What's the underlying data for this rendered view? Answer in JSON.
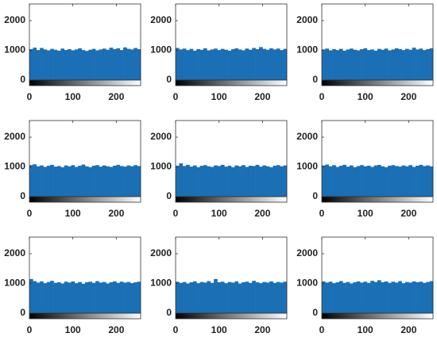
{
  "chart_data": [
    {
      "type": "histogram",
      "color": "#1a6fb5",
      "bins": [
        0,
        8,
        16,
        24,
        32,
        40,
        48,
        56,
        64,
        72,
        80,
        88,
        96,
        104,
        112,
        120,
        128,
        136,
        144,
        152,
        160,
        168,
        176,
        184,
        192,
        200,
        208,
        216,
        224,
        232,
        240,
        248,
        256
      ],
      "values": [
        1040,
        1090,
        1010,
        1080,
        1030,
        1000,
        1050,
        1020,
        990,
        1060,
        1010,
        1040,
        1000,
        1030,
        1070,
        1010,
        980,
        1020,
        1050,
        1000,
        1030,
        1060,
        1020,
        1090,
        1040,
        1070,
        1010,
        1100,
        1050,
        1030,
        1080,
        1040
      ],
      "xlim": [
        0,
        256
      ],
      "ylim": [
        0,
        2560
      ],
      "xticks": [
        0,
        100,
        200
      ],
      "yticks": [
        0,
        1000,
        2000
      ]
    },
    {
      "type": "histogram",
      "color": "#1a6fb5",
      "bins": [
        0,
        8,
        16,
        24,
        32,
        40,
        48,
        56,
        64,
        72,
        80,
        88,
        96,
        104,
        112,
        120,
        128,
        136,
        144,
        152,
        160,
        168,
        176,
        184,
        192,
        200,
        208,
        216,
        224,
        232,
        240,
        248,
        256
      ],
      "values": [
        1080,
        1030,
        1060,
        1010,
        1050,
        990,
        1040,
        1020,
        1070,
        1000,
        1030,
        1060,
        1010,
        1050,
        1020,
        990,
        1040,
        1070,
        1030,
        1000,
        1060,
        1020,
        1080,
        1040,
        1110,
        1050,
        1020,
        1070,
        1030,
        1060,
        1010,
        1050
      ],
      "xlim": [
        0,
        256
      ],
      "ylim": [
        0,
        2560
      ],
      "xticks": [
        0,
        100,
        200
      ],
      "yticks": [
        0,
        1000,
        2000
      ]
    },
    {
      "type": "histogram",
      "color": "#1a6fb5",
      "bins": [
        0,
        8,
        16,
        24,
        32,
        40,
        48,
        56,
        64,
        72,
        80,
        88,
        96,
        104,
        112,
        120,
        128,
        136,
        144,
        152,
        160,
        168,
        176,
        184,
        192,
        200,
        208,
        216,
        224,
        232,
        240,
        248,
        256
      ],
      "values": [
        1030,
        1060,
        1000,
        1040,
        1010,
        1050,
        990,
        1030,
        1060,
        1020,
        1000,
        1040,
        1070,
        1010,
        1030,
        990,
        1050,
        1020,
        1060,
        1000,
        1030,
        1070,
        1040,
        1010,
        1050,
        1020,
        1090,
        1030,
        1060,
        1010,
        1040,
        1070
      ],
      "xlim": [
        0,
        256
      ],
      "ylim": [
        0,
        2560
      ],
      "xticks": [
        0,
        100,
        200
      ],
      "yticks": [
        0,
        1000,
        2000
      ]
    },
    {
      "type": "histogram",
      "color": "#1a6fb5",
      "bins": [
        0,
        8,
        16,
        24,
        32,
        40,
        48,
        56,
        64,
        72,
        80,
        88,
        96,
        104,
        112,
        120,
        128,
        136,
        144,
        152,
        160,
        168,
        176,
        184,
        192,
        200,
        208,
        216,
        224,
        232,
        240,
        248,
        256
      ],
      "values": [
        1060,
        1090,
        1020,
        1050,
        1000,
        1040,
        1070,
        1010,
        1030,
        990,
        1050,
        1020,
        1060,
        1000,
        1040,
        1080,
        1020,
        990,
        1040,
        1060,
        1010,
        1050,
        1020,
        1000,
        1040,
        1070,
        1030,
        1010,
        1050,
        1020,
        1060,
        1030
      ],
      "xlim": [
        0,
        256
      ],
      "ylim": [
        0,
        2560
      ],
      "xticks": [
        0,
        100,
        200
      ],
      "yticks": [
        0,
        1000,
        2000
      ]
    },
    {
      "type": "histogram",
      "color": "#1a6fb5",
      "bins": [
        0,
        8,
        16,
        24,
        32,
        40,
        48,
        56,
        64,
        72,
        80,
        88,
        96,
        104,
        112,
        120,
        128,
        136,
        144,
        152,
        160,
        168,
        176,
        184,
        192,
        200,
        208,
        216,
        224,
        232,
        240,
        248,
        256
      ],
      "values": [
        1040,
        1120,
        1030,
        1070,
        1010,
        1050,
        990,
        1040,
        1060,
        1020,
        1000,
        1050,
        1030,
        1070,
        1010,
        1040,
        990,
        1050,
        1020,
        1060,
        1000,
        1040,
        1030,
        1070,
        1010,
        1050,
        1020,
        990,
        1040,
        1060,
        1020,
        1050
      ],
      "xlim": [
        0,
        256
      ],
      "ylim": [
        0,
        2560
      ],
      "xticks": [
        0,
        100,
        200
      ],
      "yticks": [
        0,
        1000,
        2000
      ]
    },
    {
      "type": "histogram",
      "color": "#1a6fb5",
      "bins": [
        0,
        8,
        16,
        24,
        32,
        40,
        48,
        56,
        64,
        72,
        80,
        88,
        96,
        104,
        112,
        120,
        128,
        136,
        144,
        152,
        160,
        168,
        176,
        184,
        192,
        200,
        208,
        216,
        224,
        232,
        240,
        248,
        256
      ],
      "values": [
        1050,
        1080,
        1020,
        1060,
        1000,
        1040,
        1070,
        1010,
        1050,
        990,
        1030,
        1060,
        1020,
        1040,
        1000,
        1050,
        1070,
        1020,
        990,
        1040,
        1060,
        1030,
        1010,
        1050,
        1020,
        1060,
        1000,
        1040,
        1070,
        1030,
        1050,
        1020
      ],
      "xlim": [
        0,
        256
      ],
      "ylim": [
        0,
        2560
      ],
      "xticks": [
        0,
        100,
        200
      ],
      "yticks": [
        0,
        1000,
        2000
      ]
    },
    {
      "type": "histogram",
      "color": "#1a6fb5",
      "bins": [
        0,
        8,
        16,
        24,
        32,
        40,
        48,
        56,
        64,
        72,
        80,
        88,
        96,
        104,
        112,
        120,
        128,
        136,
        144,
        152,
        160,
        168,
        176,
        184,
        192,
        200,
        208,
        216,
        224,
        232,
        240,
        248,
        256
      ],
      "values": [
        1150,
        1080,
        1030,
        1070,
        1010,
        1050,
        1090,
        1020,
        1040,
        1000,
        1060,
        1030,
        1070,
        1010,
        1050,
        990,
        1040,
        1060,
        1020,
        1080,
        1030,
        1050,
        1000,
        1040,
        1070,
        1020,
        1060,
        1030,
        1050,
        1010,
        1040,
        1060
      ],
      "xlim": [
        0,
        256
      ],
      "ylim": [
        0,
        2560
      ],
      "xticks": [
        0,
        100,
        200
      ],
      "yticks": [
        0,
        1000,
        2000
      ]
    },
    {
      "type": "histogram",
      "color": "#1a6fb5",
      "bins": [
        0,
        8,
        16,
        24,
        32,
        40,
        48,
        56,
        64,
        72,
        80,
        88,
        96,
        104,
        112,
        120,
        128,
        136,
        144,
        152,
        160,
        168,
        176,
        184,
        192,
        200,
        208,
        216,
        224,
        232,
        240,
        248,
        256
      ],
      "values": [
        1060,
        1020,
        1050,
        1000,
        1040,
        1070,
        1010,
        1050,
        1030,
        1080,
        1020,
        1150,
        1040,
        1060,
        1010,
        1050,
        1030,
        1070,
        1000,
        1040,
        1060,
        1020,
        1090,
        1040,
        1010,
        1050,
        1030,
        1070,
        1020,
        1050,
        1030,
        1060
      ],
      "xlim": [
        0,
        256
      ],
      "ylim": [
        0,
        2560
      ],
      "xticks": [
        0,
        100,
        200
      ],
      "yticks": [
        0,
        1000,
        2000
      ]
    },
    {
      "type": "histogram",
      "color": "#1a6fb5",
      "bins": [
        0,
        8,
        16,
        24,
        32,
        40,
        48,
        56,
        64,
        72,
        80,
        88,
        96,
        104,
        112,
        120,
        128,
        136,
        144,
        152,
        160,
        168,
        176,
        184,
        192,
        200,
        208,
        216,
        224,
        232,
        240,
        248,
        256
      ],
      "values": [
        1070,
        1030,
        1060,
        1010,
        1040,
        1080,
        1020,
        1050,
        1000,
        1040,
        1070,
        1030,
        1060,
        1020,
        1090,
        1050,
        1110,
        1040,
        1070,
        1020,
        1060,
        1030,
        1080,
        1010,
        1050,
        1030,
        1070,
        1040,
        1060,
        1020,
        1050,
        1080
      ],
      "xlim": [
        0,
        256
      ],
      "ylim": [
        0,
        2560
      ],
      "xticks": [
        0,
        100,
        200
      ],
      "yticks": [
        0,
        1000,
        2000
      ]
    }
  ]
}
